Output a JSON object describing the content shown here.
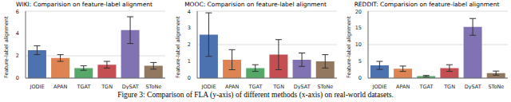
{
  "chart_data": [
    {
      "type": "bar",
      "title": "WIKI: Comparision on feature-label alignment",
      "y_label": "Feature-label alignment",
      "categories": [
        "JODIE",
        "APAN",
        "TGAT",
        "TGN",
        "DySAT",
        "SToNe"
      ],
      "values": [
        2.5,
        1.8,
        0.9,
        1.2,
        4.3,
        1.1
      ],
      "errors": [
        0.4,
        0.3,
        0.2,
        0.3,
        1.2,
        0.3
      ],
      "colors": [
        "#4c72b0",
        "#dd8452",
        "#55a868",
        "#c44e52",
        "#8172b3",
        "#937860"
      ],
      "ylim": [
        0,
        6
      ],
      "yticks": [
        0,
        2,
        4,
        6
      ],
      "grid": true
    },
    {
      "type": "bar",
      "title": "MOOC: Comparision on feature-label alignment",
      "y_label": "Feature-label alignment",
      "categories": [
        "JODIE",
        "APAN",
        "TGAT",
        "TGN",
        "DySAT",
        "SToNe"
      ],
      "values": [
        2.6,
        1.1,
        0.6,
        1.4,
        1.1,
        1.0
      ],
      "errors": [
        1.3,
        0.6,
        0.2,
        0.9,
        0.4,
        0.4
      ],
      "colors": [
        "#4c72b0",
        "#dd8452",
        "#55a868",
        "#c44e52",
        "#8172b3",
        "#937860"
      ],
      "ylim": [
        0,
        4
      ],
      "yticks": [
        0,
        1,
        2,
        3,
        4
      ],
      "grid": true
    },
    {
      "type": "bar",
      "title": "REDDIT: Comparision on feature-label alignment",
      "y_label": "Feature-label alignment",
      "categories": [
        "JODIE",
        "APAN",
        "TGAT",
        "TGN",
        "DySAT",
        "SToNe"
      ],
      "values": [
        3.8,
        2.8,
        0.6,
        3.0,
        15.3,
        1.5
      ],
      "errors": [
        1.2,
        0.8,
        0.2,
        1.0,
        2.5,
        0.6
      ],
      "colors": [
        "#4c72b0",
        "#dd8452",
        "#55a868",
        "#c44e52",
        "#8172b3",
        "#937860"
      ],
      "ylim": [
        0,
        20
      ],
      "yticks": [
        0,
        5,
        10,
        15,
        20
      ],
      "grid": true
    }
  ],
  "caption": "Figure 3: Comparison of FLA (y-axis) of different methods (x-axis) on real-world datasets."
}
